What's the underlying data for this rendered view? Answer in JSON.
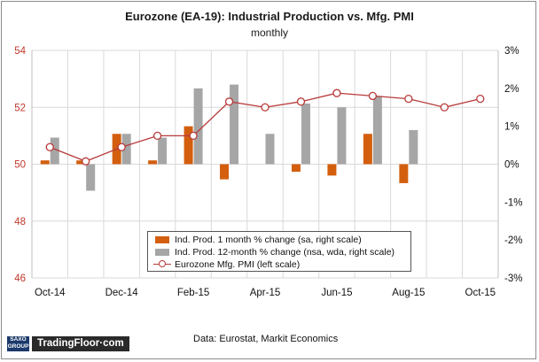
{
  "chart_data": {
    "type": "bar+line",
    "title": "Eurozone (EA-19): Industrial Production vs. Mfg. PMI",
    "subtitle": "monthly",
    "source": "Data: Eurostat, Markit Economics",
    "brand": {
      "logo": "SAXO GROUP",
      "site": "TradingFloor·com"
    },
    "categories": [
      "Oct-14",
      "Nov-14",
      "Dec-14",
      "Jan-15",
      "Feb-15",
      "Mar-15",
      "Apr-15",
      "May-15",
      "Jun-15",
      "Jul-15",
      "Aug-15",
      "Sep-15",
      "Oct-15"
    ],
    "x_tick_labels": [
      "Oct-14",
      "Dec-14",
      "Feb-15",
      "Apr-15",
      "Jun-15",
      "Aug-15",
      "Oct-15"
    ],
    "left_axis": {
      "min": 46,
      "max": 54,
      "ticks": [
        "46",
        "48",
        "50",
        "52",
        "54"
      ]
    },
    "right_axis": {
      "min": -3,
      "max": 3,
      "ticks": [
        "-3%",
        "-2%",
        "-1%",
        "0%",
        "1%",
        "2%",
        "3%"
      ]
    },
    "series": [
      {
        "name": "Ind. Prod. 1 month % change (sa, right scale)",
        "kind": "bar",
        "axis": "right",
        "color": "#d35f0e",
        "values": [
          0.1,
          0.1,
          0.8,
          0.1,
          1.0,
          -0.4,
          null,
          -0.2,
          -0.3,
          0.8,
          -0.5,
          null,
          null
        ]
      },
      {
        "name": "Ind. Prod. 12-month % change (nsa, wda, right scale)",
        "kind": "bar",
        "axis": "right",
        "color": "#a6a6a6",
        "values": [
          0.7,
          -0.7,
          0.8,
          0.7,
          2.0,
          2.1,
          0.8,
          1.6,
          1.5,
          1.8,
          0.9,
          null,
          null
        ]
      },
      {
        "name": "Eurozone Mfg. PMI (left scale)",
        "kind": "line",
        "axis": "left",
        "color": "#b83a3a",
        "values": [
          50.6,
          50.1,
          50.6,
          51.0,
          51.0,
          52.2,
          52.0,
          52.2,
          52.5,
          52.4,
          52.3,
          52.0,
          52.3
        ]
      }
    ]
  }
}
